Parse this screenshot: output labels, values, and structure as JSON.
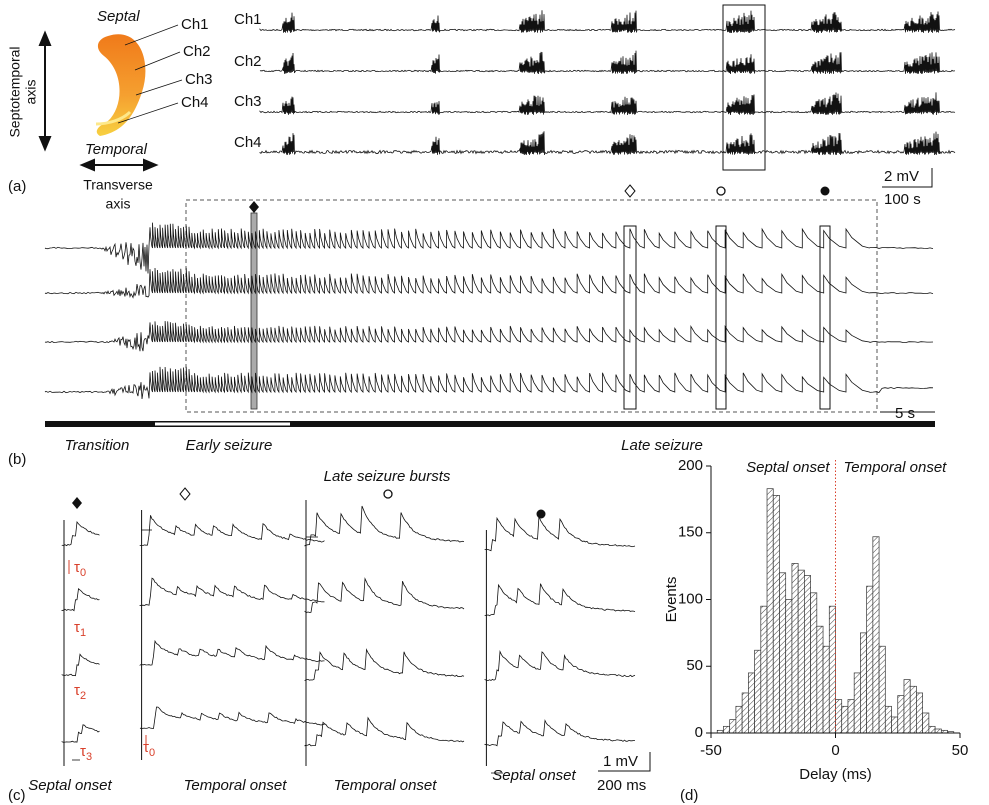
{
  "panel_a": {
    "label": "(a)",
    "schematic": {
      "top": "Septal",
      "bottom": "Temporal",
      "vertical_axis": [
        "Septotemporal",
        "axis"
      ],
      "horizontal_axis": [
        "Transverse",
        "axis"
      ],
      "channels": [
        "Ch1",
        "Ch2",
        "Ch3",
        "Ch4"
      ]
    },
    "trace_labels": [
      "Ch1",
      "Ch2",
      "Ch3",
      "Ch4"
    ],
    "scale_y": "2 mV",
    "scale_x": "100 s"
  },
  "panel_b": {
    "label": "(b)",
    "scale_x": "5 s",
    "phases": [
      "Transition",
      "Early seizure",
      "Late seizure"
    ]
  },
  "panel_c": {
    "label": "(c)",
    "title": "Late seizure bursts",
    "onsets": [
      "Septal onset",
      "Temporal onset",
      "Temporal onset",
      "Septal onset"
    ],
    "delays": [
      {
        "base": "τ",
        "sub": "0"
      },
      {
        "base": "τ",
        "sub": "1"
      },
      {
        "base": "τ",
        "sub": "2"
      },
      {
        "base": "τ",
        "sub": "3"
      }
    ],
    "second_delay": {
      "base": "τ",
      "sub": "0"
    },
    "scale_y": "1 mV",
    "scale_x": "200 ms"
  },
  "panel_d": {
    "label": "(d)"
  },
  "chart_data": {
    "type": "histogram",
    "left_annotation": "Septal onset",
    "right_annotation": "Temporal onset",
    "x_label": "Delay (ms)",
    "y_label": "Events",
    "bins": [
      -50,
      -47.5,
      -45,
      -42.5,
      -40,
      -37.5,
      -35,
      -32.5,
      -30,
      -27.5,
      -25,
      -22.5,
      -20,
      -17.5,
      -15,
      -12.5,
      -10,
      -7.5,
      -5,
      -2.5,
      0,
      2.5,
      5,
      7.5,
      10,
      12.5,
      15,
      17.5,
      20,
      22.5,
      25,
      27.5,
      30,
      32.5,
      35,
      37.5,
      40,
      42.5,
      45,
      47.5,
      50
    ],
    "values": [
      0,
      2,
      5,
      10,
      20,
      30,
      45,
      62,
      95,
      183,
      178,
      120,
      100,
      127,
      122,
      118,
      105,
      80,
      65,
      95,
      25,
      20,
      25,
      45,
      75,
      110,
      147,
      65,
      20,
      12,
      28,
      40,
      35,
      30,
      15,
      5,
      3,
      2,
      1,
      0
    ],
    "color": "#ffffff",
    "edge_color": "#333333",
    "hatch": true,
    "xlim": [
      -50,
      50
    ],
    "ylim": [
      0,
      200
    ],
    "xticks": [
      -50,
      0,
      50
    ],
    "yticks": [
      0,
      50,
      100,
      150,
      200
    ],
    "reference_line": {
      "x": 0,
      "color": "#d9402b",
      "style": "dotted"
    }
  }
}
